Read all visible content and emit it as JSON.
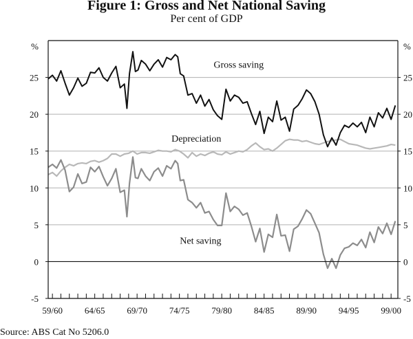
{
  "title": "Figure 1: Gross and Net National Saving",
  "subtitle": "Per cent of GDP",
  "source": "Source: ABS Cat No 5206.0",
  "chart_data": {
    "type": "line",
    "title": "Figure 1: Gross and Net National Saving",
    "subtitle": "Per cent of GDP",
    "xlabel": "",
    "ylabel": "%",
    "ylabel_right": "%",
    "ylim": [
      -5,
      30
    ],
    "xlim": [
      1959.0,
      2000.3
    ],
    "yticks": [
      -5,
      0,
      5,
      10,
      15,
      20,
      25
    ],
    "ytick_labels": [
      "-5",
      "0",
      "5",
      "10",
      "15",
      "20",
      "25"
    ],
    "xticks": [
      1959.5,
      1964.5,
      1969.5,
      1974.5,
      1979.5,
      1984.5,
      1989.5,
      1994.5,
      1999.5
    ],
    "xtick_labels": [
      "59/60",
      "64/65",
      "69/70",
      "74/75",
      "79/80",
      "84/85",
      "89/90",
      "94/95",
      "99/00"
    ],
    "minor_ticks_every_years": 1,
    "grid": true,
    "series": [
      {
        "name": "Gross saving",
        "color": "#111111",
        "label_anchor": [
          1981.5,
          26.3
        ],
        "x": [
          1959.0,
          1959.5,
          1960.0,
          1960.5,
          1961.0,
          1961.5,
          1962.0,
          1962.5,
          1963.0,
          1963.5,
          1964.0,
          1964.5,
          1965.0,
          1965.5,
          1966.0,
          1966.5,
          1967.0,
          1967.5,
          1968.0,
          1968.3,
          1968.6,
          1969.0,
          1969.3,
          1969.6,
          1970.0,
          1970.5,
          1971.0,
          1971.5,
          1972.0,
          1972.5,
          1973.0,
          1973.5,
          1974.0,
          1974.3,
          1974.6,
          1975.0,
          1975.5,
          1976.0,
          1976.5,
          1977.0,
          1977.5,
          1978.0,
          1978.5,
          1979.0,
          1979.5,
          1980.0,
          1980.5,
          1981.0,
          1981.5,
          1982.0,
          1982.5,
          1983.0,
          1983.5,
          1984.0,
          1984.5,
          1985.0,
          1985.5,
          1986.0,
          1986.5,
          1987.0,
          1987.5,
          1988.0,
          1988.5,
          1989.0,
          1989.5,
          1990.0,
          1990.5,
          1991.0,
          1991.5,
          1992.0,
          1992.5,
          1993.0,
          1993.5,
          1994.0,
          1994.5,
          1995.0,
          1995.5,
          1996.0,
          1996.5,
          1997.0,
          1997.5,
          1998.0,
          1998.5,
          1999.0,
          1999.5,
          2000.0
        ],
        "values": [
          24.8,
          25.3,
          24.5,
          25.9,
          24.2,
          22.6,
          23.6,
          24.9,
          23.8,
          24.2,
          25.7,
          25.6,
          26.3,
          25.0,
          24.5,
          25.6,
          26.5,
          23.6,
          24.1,
          20.8,
          25.5,
          28.5,
          25.8,
          26.0,
          27.3,
          26.8,
          25.9,
          26.8,
          27.4,
          26.4,
          27.7,
          27.4,
          28.1,
          27.8,
          25.5,
          25.2,
          22.6,
          22.8,
          21.5,
          22.6,
          21.1,
          22.0,
          20.6,
          19.8,
          19.3,
          23.4,
          21.8,
          22.6,
          22.3,
          21.5,
          21.7,
          20.1,
          18.6,
          20.4,
          17.4,
          19.6,
          19.0,
          21.8,
          19.2,
          19.6,
          17.7,
          20.7,
          21.2,
          22.1,
          23.3,
          22.8,
          21.7,
          20.0,
          17.2,
          15.6,
          16.8,
          15.8,
          17.5,
          18.5,
          18.2,
          18.8,
          18.3,
          18.9,
          17.5,
          19.6,
          18.3,
          20.2,
          19.5,
          20.8,
          19.3,
          21.2
        ]
      },
      {
        "name": "Depreciation",
        "color": "#b8b8b8",
        "label_anchor": [
          1976.5,
          16.3
        ],
        "x": [
          1959.0,
          1959.5,
          1960.0,
          1960.5,
          1961.0,
          1961.5,
          1962.0,
          1962.5,
          1963.0,
          1963.5,
          1964.0,
          1964.5,
          1965.0,
          1965.5,
          1966.0,
          1966.5,
          1967.0,
          1967.5,
          1968.0,
          1968.5,
          1969.0,
          1969.5,
          1970.0,
          1970.5,
          1971.0,
          1971.5,
          1972.0,
          1972.5,
          1973.0,
          1973.5,
          1974.0,
          1974.5,
          1975.0,
          1975.5,
          1976.0,
          1976.5,
          1977.0,
          1977.5,
          1978.0,
          1978.5,
          1979.0,
          1979.5,
          1980.0,
          1980.5,
          1981.0,
          1981.5,
          1982.0,
          1982.5,
          1983.0,
          1983.5,
          1984.0,
          1984.5,
          1985.0,
          1985.5,
          1986.0,
          1986.5,
          1987.0,
          1987.5,
          1988.0,
          1988.5,
          1989.0,
          1989.5,
          1990.0,
          1990.5,
          1991.0,
          1991.5,
          1992.0,
          1992.5,
          1993.0,
          1993.5,
          1994.0,
          1994.5,
          1995.0,
          1995.5,
          1996.0,
          1996.5,
          1997.0,
          1997.5,
          1998.0,
          1998.5,
          1999.0,
          1999.5,
          2000.0
        ],
        "values": [
          11.8,
          12.1,
          11.6,
          12.3,
          12.8,
          13.2,
          13.0,
          13.3,
          13.4,
          13.3,
          13.6,
          13.7,
          13.5,
          13.7,
          14.0,
          14.6,
          14.6,
          14.3,
          14.6,
          14.7,
          15.0,
          14.6,
          14.8,
          14.8,
          14.7,
          14.9,
          15.1,
          15.0,
          15.0,
          14.9,
          15.2,
          15.0,
          14.6,
          14.1,
          14.8,
          14.3,
          14.6,
          14.4,
          14.7,
          14.9,
          14.6,
          14.5,
          14.9,
          14.6,
          14.8,
          15.0,
          14.9,
          15.2,
          15.7,
          16.1,
          15.6,
          15.2,
          15.3,
          15.0,
          15.4,
          15.9,
          16.4,
          16.6,
          16.5,
          16.5,
          16.3,
          16.4,
          16.2,
          16.0,
          15.9,
          16.1,
          16.3,
          16.4,
          16.5,
          16.6,
          16.3,
          16.0,
          15.9,
          15.8,
          15.6,
          15.4,
          15.3,
          15.4,
          15.5,
          15.6,
          15.7,
          15.9,
          15.8
        ]
      },
      {
        "name": "Net saving",
        "color": "#8c8c8c",
        "label_anchor": [
          1977.0,
          2.4
        ],
        "x": [
          1959.0,
          1959.5,
          1960.0,
          1960.5,
          1961.0,
          1961.5,
          1962.0,
          1962.5,
          1963.0,
          1963.5,
          1964.0,
          1964.5,
          1965.0,
          1965.5,
          1966.0,
          1966.5,
          1967.0,
          1967.5,
          1968.0,
          1968.3,
          1968.6,
          1969.0,
          1969.3,
          1969.6,
          1970.0,
          1970.5,
          1971.0,
          1971.5,
          1972.0,
          1972.5,
          1973.0,
          1973.5,
          1974.0,
          1974.3,
          1974.6,
          1975.0,
          1975.5,
          1976.0,
          1976.5,
          1977.0,
          1977.5,
          1978.0,
          1978.5,
          1979.0,
          1979.5,
          1980.0,
          1980.5,
          1981.0,
          1981.5,
          1982.0,
          1982.5,
          1983.0,
          1983.5,
          1984.0,
          1984.5,
          1985.0,
          1985.5,
          1986.0,
          1986.5,
          1987.0,
          1987.5,
          1988.0,
          1988.5,
          1989.0,
          1989.5,
          1990.0,
          1990.5,
          1991.0,
          1991.5,
          1992.0,
          1992.5,
          1993.0,
          1993.5,
          1994.0,
          1994.5,
          1995.0,
          1995.5,
          1996.0,
          1996.5,
          1997.0,
          1997.5,
          1998.0,
          1998.5,
          1999.0,
          1999.5,
          2000.0
        ],
        "values": [
          12.8,
          13.2,
          12.7,
          13.8,
          12.4,
          9.5,
          10.1,
          11.9,
          10.6,
          10.8,
          12.8,
          12.2,
          12.9,
          11.5,
          10.3,
          11.3,
          12.6,
          9.4,
          9.7,
          6.1,
          10.6,
          14.2,
          11.4,
          11.3,
          12.6,
          11.6,
          11.0,
          12.2,
          12.7,
          11.6,
          13.0,
          12.6,
          13.7,
          13.3,
          11.0,
          11.1,
          8.4,
          8.0,
          7.3,
          8.0,
          6.6,
          6.8,
          5.7,
          4.9,
          4.9,
          9.3,
          6.8,
          7.5,
          7.1,
          6.3,
          6.6,
          4.8,
          2.7,
          4.5,
          1.3,
          3.7,
          3.3,
          6.4,
          3.5,
          3.6,
          1.4,
          4.4,
          4.8,
          5.8,
          7.0,
          6.5,
          5.2,
          3.9,
          1.0,
          -0.9,
          0.4,
          -0.9,
          0.9,
          1.8,
          2.0,
          2.5,
          2.2,
          3.0,
          1.9,
          4.0,
          2.6,
          4.7,
          3.8,
          5.2,
          3.7,
          5.5
        ]
      }
    ],
    "reference_line": {
      "y": 0,
      "color": "#111111"
    }
  }
}
